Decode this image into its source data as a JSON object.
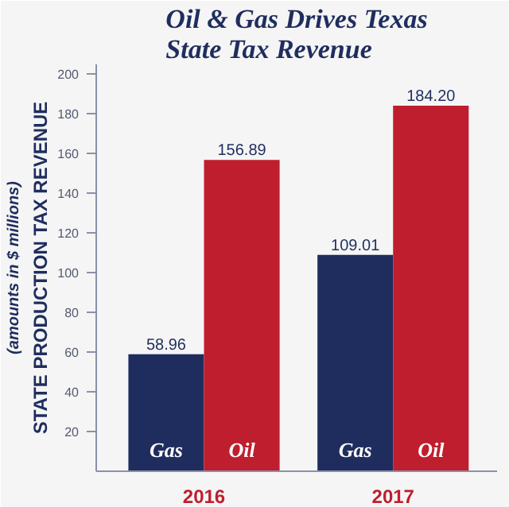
{
  "chart_data": {
    "type": "bar",
    "title": "Oil & Gas Drives Texas\nState Tax Revenue",
    "ylabel": "STATE PRODUCTION TAX REVENUE\n(amounts in $ millions)",
    "categories": [
      "2016",
      "2017"
    ],
    "series": [
      {
        "name": "Gas",
        "color": "#1f2d5e",
        "values": [
          58.96,
          109.01
        ],
        "value_labels": [
          "58.96",
          "109.01"
        ]
      },
      {
        "name": "Oil",
        "color": "#bf1e2e",
        "values": [
          156.89,
          184.2
        ],
        "value_labels": [
          "156.89",
          "184.20"
        ]
      }
    ],
    "ylim": [
      0,
      205
    ],
    "yticks": [
      20,
      40,
      60,
      80,
      100,
      120,
      140,
      160,
      180,
      200
    ],
    "grid": false
  }
}
